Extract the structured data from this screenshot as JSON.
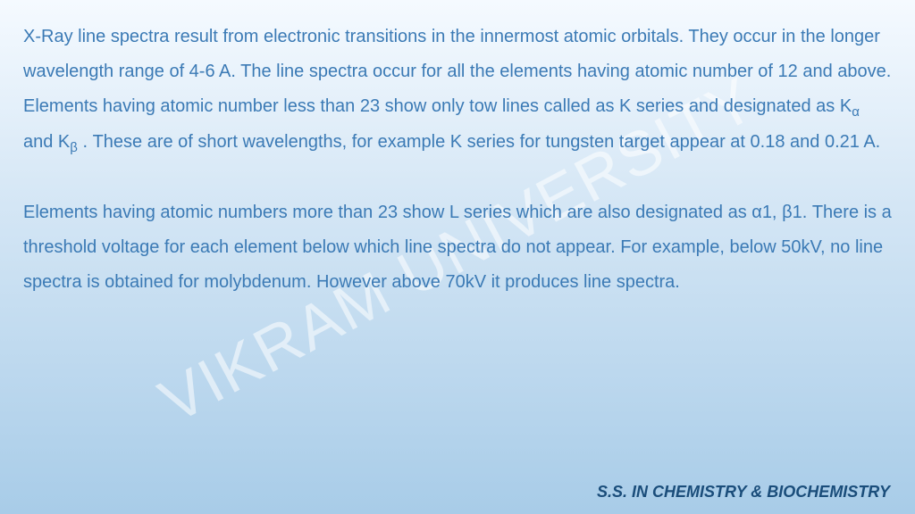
{
  "watermark": {
    "text": "VIKRAM UNIVERSITY",
    "color": "rgba(255,255,255,0.55)",
    "fontsize": 70,
    "rotation_deg": -28
  },
  "background": {
    "gradient_top": "#f5faff",
    "gradient_mid": "#d4e6f5",
    "gradient_bottom": "#a8cce8"
  },
  "text_color": "#3b7ab5",
  "body_fontsize": 20,
  "paragraphs": {
    "p1_a": "X-Ray line spectra result from electronic transitions in the innermost atomic orbitals. They occur in the longer wavelength range of 4-6 A. The line spectra occur for all the elements having atomic number of 12 and above. Elements having atomic number  less than 23 show only tow lines called as K series and designated as K",
    "p1_sub1": "α",
    "p1_b": " and K",
    "p1_sub2": "β",
    "p1_c": " . These are of short wavelengths, for example K series for tungsten target appear at 0.18 and 0.21 A.",
    "p2_a": "Elements having atomic numbers more than 23 show L series which are also designated as ",
    "p2_greek1": "α",
    "p2_b": "1, ",
    "p2_greek2": "β",
    "p2_c": "1. There is a threshold voltage for each element below which line spectra do not appear. For example, below 50kV, no line spectra is obtained for molybdenum. However above 70kV it produces line spectra."
  },
  "footer": {
    "text": "S.S. IN CHEMISTRY & BIOCHEMISTRY",
    "color": "#1a4d7a",
    "fontsize": 18
  }
}
